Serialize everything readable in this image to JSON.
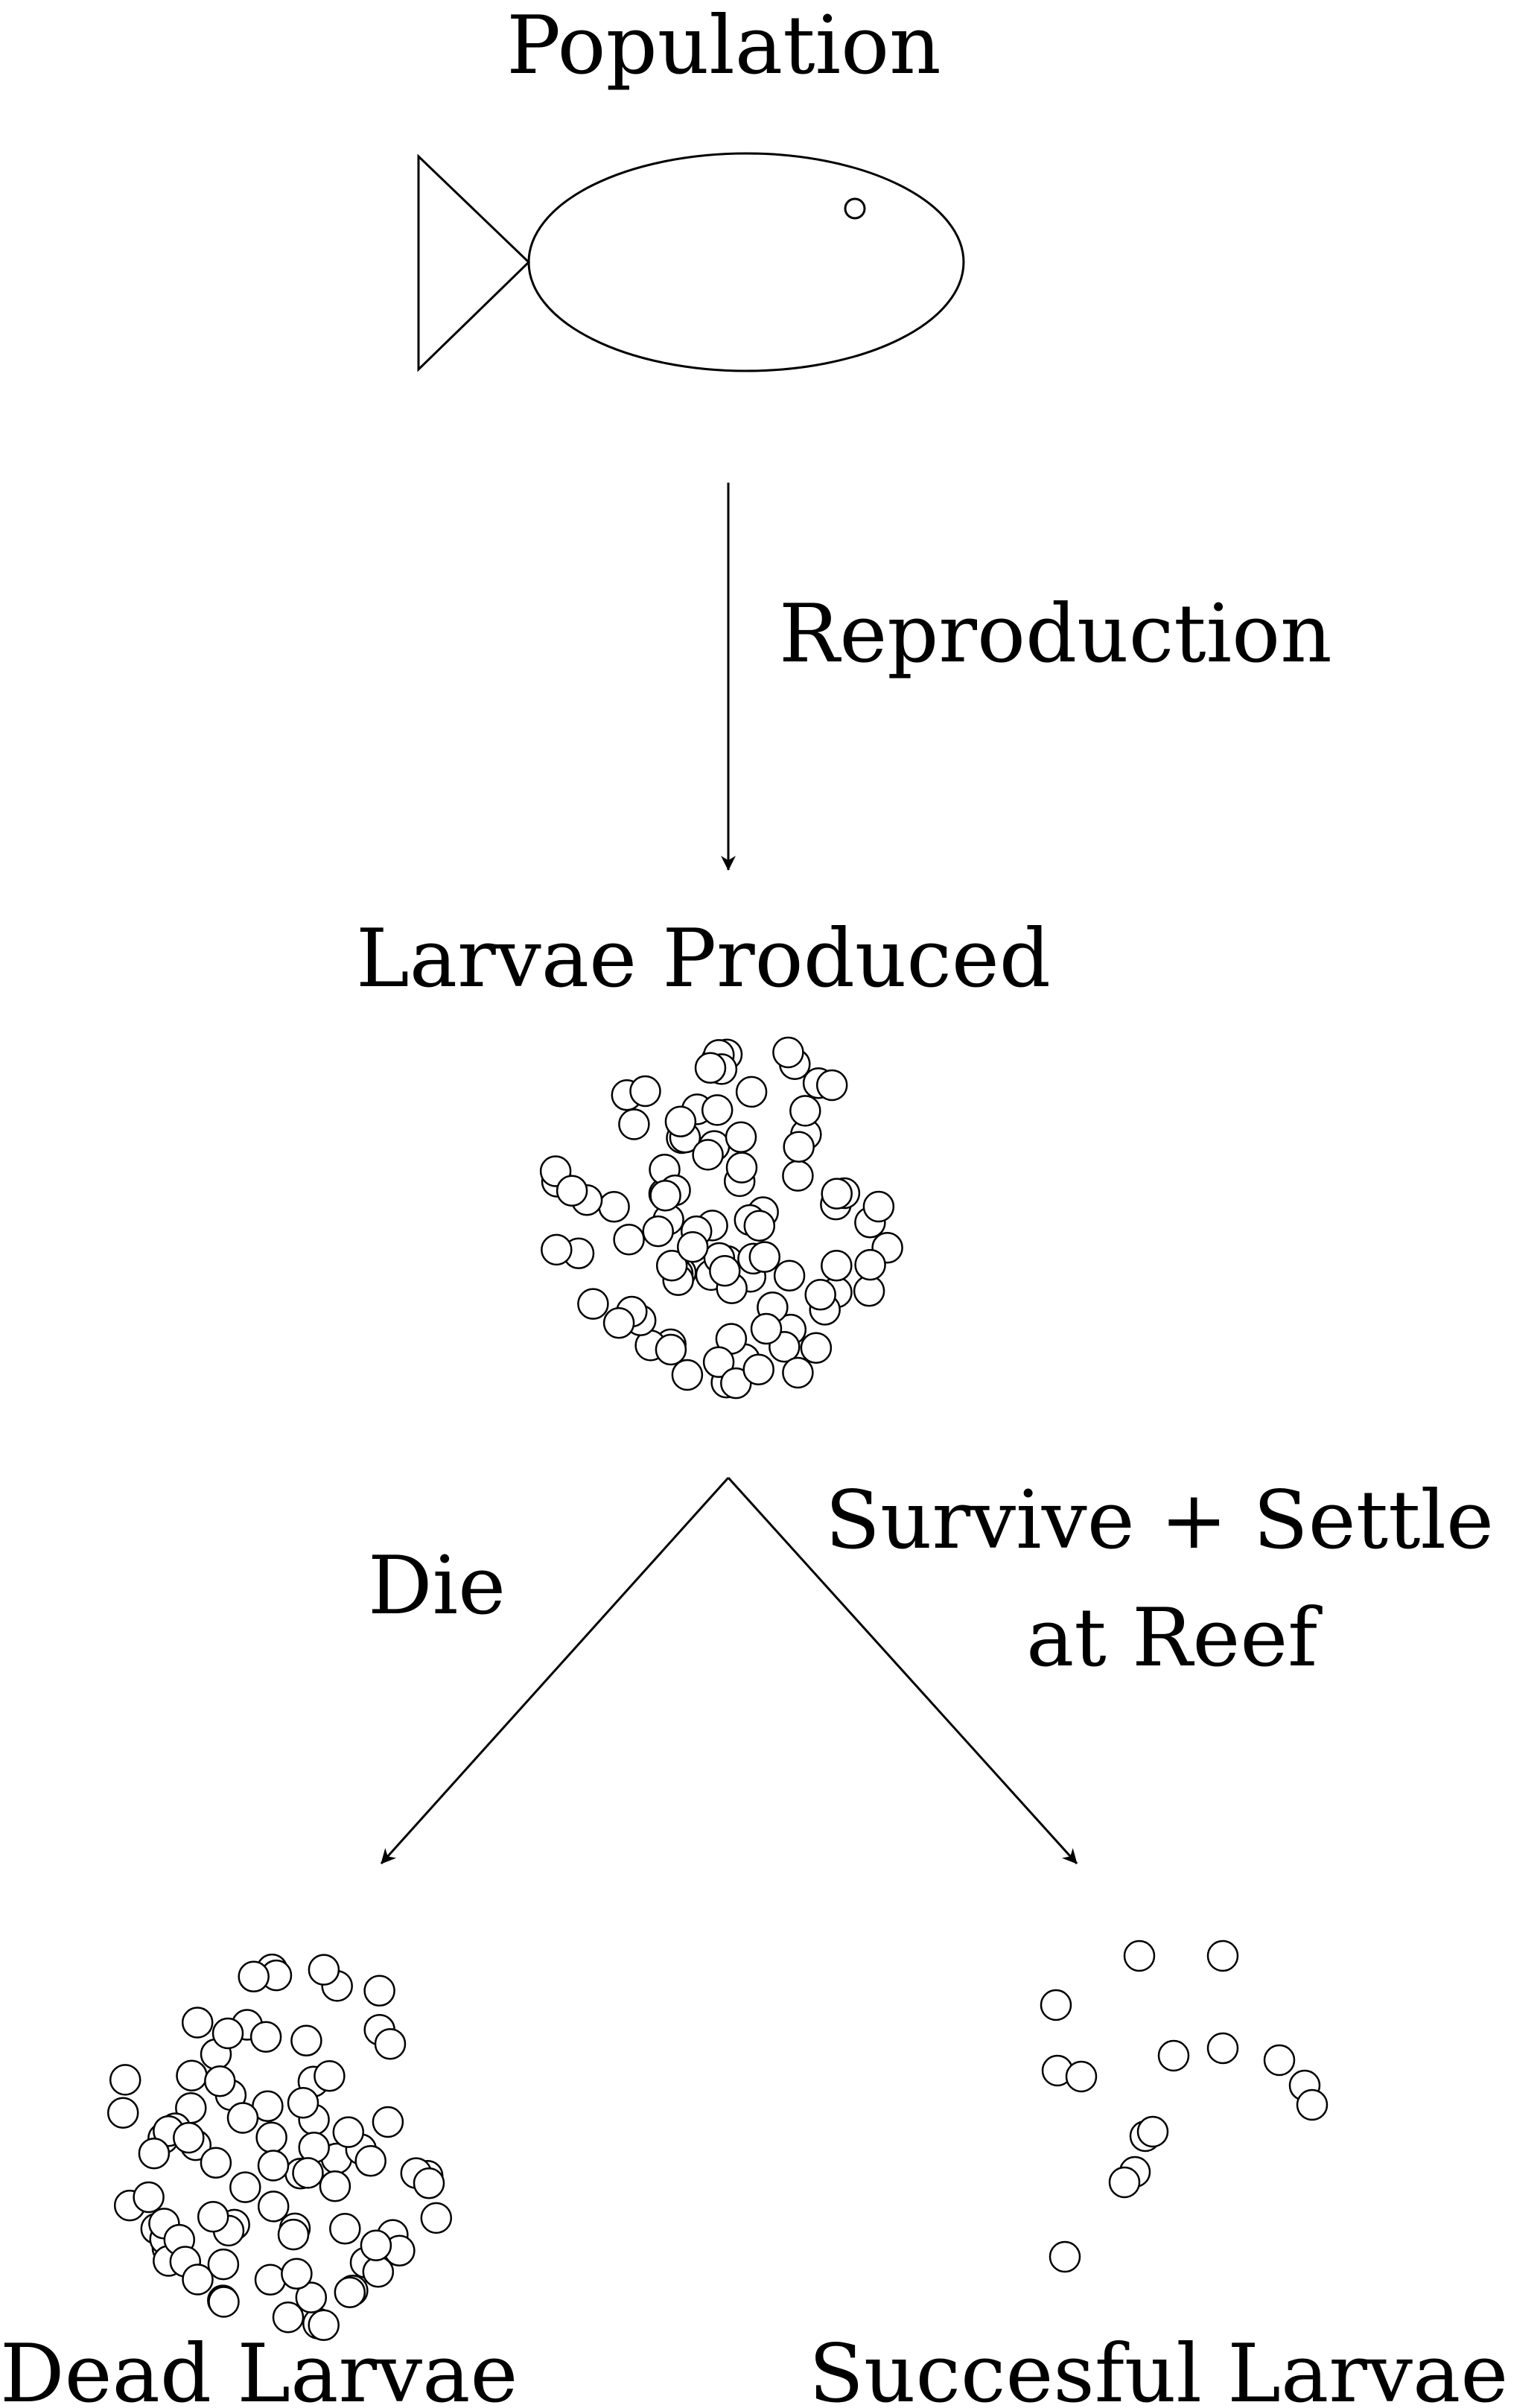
{
  "labels": {
    "population": "Population",
    "reproduction": "Reproduction",
    "larvae_produced": "Larvae Produced",
    "die": "Die",
    "survive_line1": "Survive + Settle",
    "survive_line2": "at Reef",
    "dead_larvae": "Dead Larvae",
    "successful_larvae": "Succesful Larvae"
  },
  "colors": {
    "stroke": "#000000",
    "background": "#ffffff"
  },
  "icons": {
    "fish": "fish-icon",
    "larva": "circle"
  }
}
